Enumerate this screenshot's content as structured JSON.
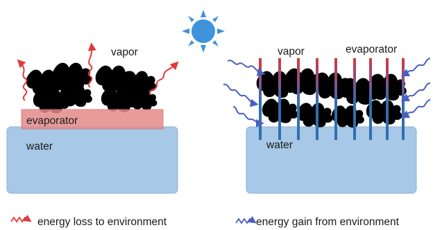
{
  "left_panel": {
    "vapor_label": "vapor",
    "evaporator_label": "evaporator",
    "water_label": "water"
  },
  "right_panel": {
    "vapor_label": "vapor",
    "evaporator_label": "evaporator",
    "water_label": "water"
  },
  "legend": {
    "loss_label": "energy loss to environment",
    "gain_label": "energy gain from environment"
  },
  "colors": {
    "water": "#a7c8e6",
    "water_edge": "#8fb3d6",
    "evaporator_film": "#e58a8a",
    "loss_arrow": "#e23a3a",
    "gain_arrow": "#4a5fbf",
    "sun": "#3f93db",
    "rod_top": "#d13b3b",
    "rod_bottom": "#2f6fb0"
  },
  "icons": {
    "sun": "sun-icon",
    "loss_arrow": "wavy-arrow-red-icon",
    "gain_arrow": "wavy-arrow-blue-icon"
  }
}
